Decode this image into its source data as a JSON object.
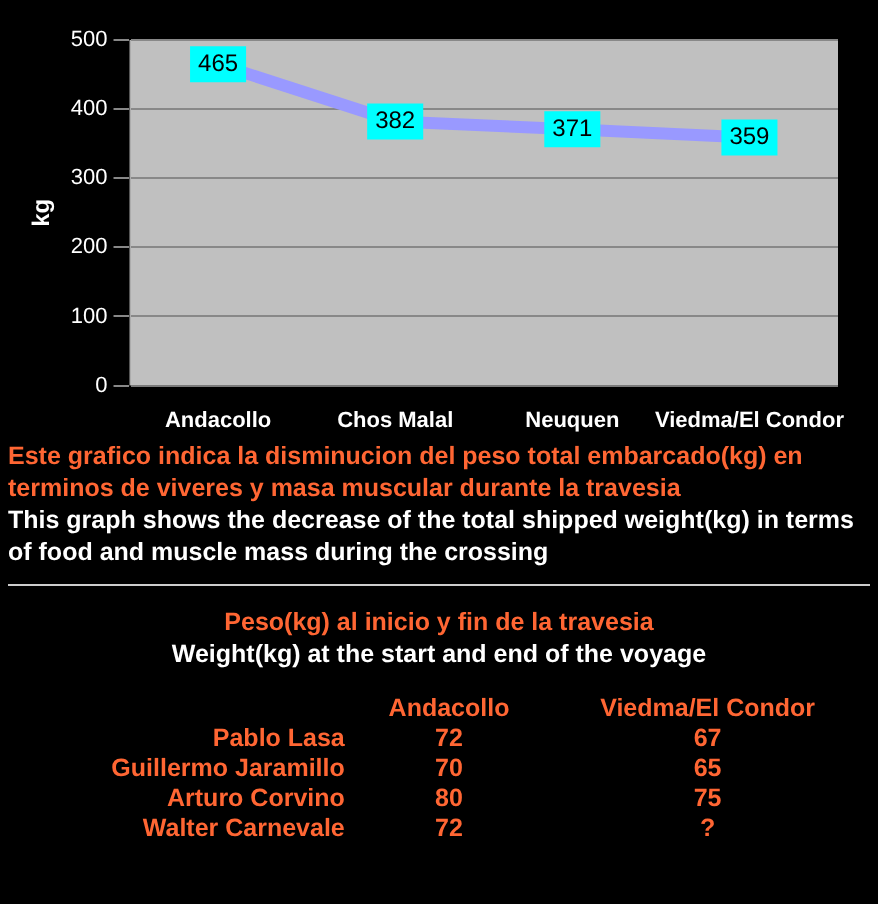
{
  "chart_data": {
    "type": "line",
    "categories": [
      "Andacollo",
      "Chos Malal",
      "Neuquen",
      "Viedma/El Condor"
    ],
    "series": [
      {
        "color": "#9999ff",
        "values": [
          465,
          382,
          371,
          359
        ]
      }
    ],
    "ylabel": "kg",
    "ylim": [
      0,
      500
    ],
    "yticks": [
      0,
      100,
      200,
      300,
      400,
      500
    ],
    "grid": "y",
    "data_labels": true,
    "marker": "square",
    "annotations": [
      "Este grafico indica la disminucion del peso total embarcado(kg) en terminos de viveres y masa muscular durante la travesia",
      "This graph shows the decrease of the total shipped weight(kg) in terms of food and muscle mass during the crossing",
      "Peso(kg) al inicio y fin de la travesia",
      "Weight(kg) at the start and end of the voyage",
      "Andacollo",
      "Viedma/El Condor",
      "Pablo Lasa",
      "72",
      "67",
      "Guillermo Jaramillo",
      "70",
      "65",
      "Arturo Corvino",
      "80",
      "75",
      "Walter Carnevale",
      "72",
      "?"
    ]
  }
}
